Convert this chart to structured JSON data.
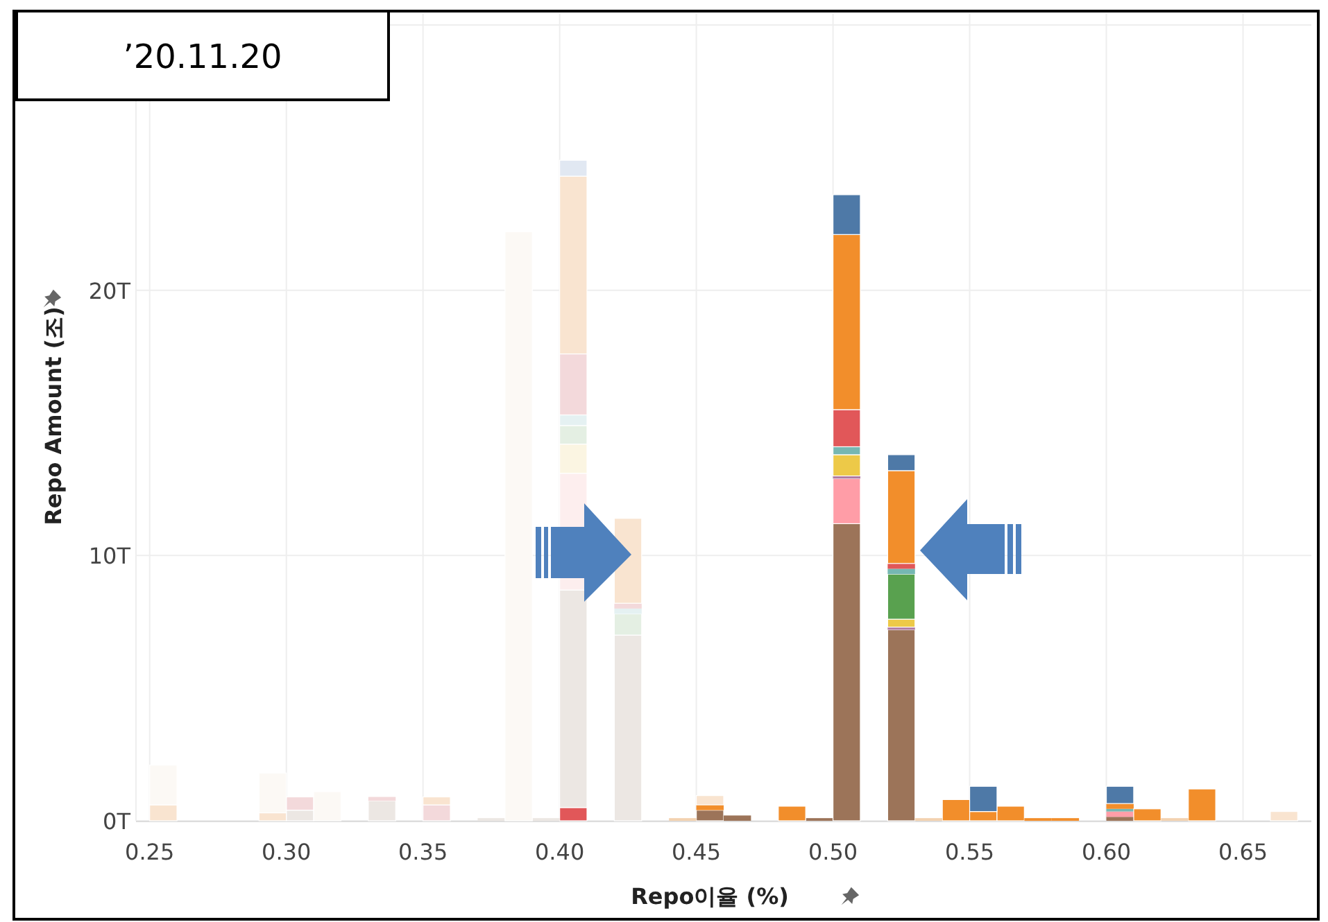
{
  "chart_data": {
    "type": "bar",
    "title": "’20.11.20",
    "xlabel": "Repo이율 (%)",
    "ylabel": "Repo Amount (조)",
    "x": [
      0.255,
      0.295,
      0.305,
      0.315,
      0.335,
      0.355,
      0.375,
      0.385,
      0.395,
      0.405,
      0.425,
      0.445,
      0.455,
      0.465,
      0.485,
      0.495,
      0.505,
      0.525,
      0.535,
      0.545,
      0.555,
      0.565,
      0.575,
      0.585,
      0.605,
      0.615,
      0.625,
      0.635,
      0.655,
      0.665
    ],
    "stacked": true,
    "series": [
      {
        "color": "#e15759",
        "values": [
          0,
          0,
          0,
          0,
          0,
          0,
          0,
          0,
          0,
          0.5,
          0,
          0,
          0,
          0,
          0,
          0,
          0,
          0,
          0,
          0,
          0,
          0,
          0,
          0,
          0,
          0,
          0,
          0,
          0,
          0
        ]
      },
      {
        "color": "#9c7459",
        "values": [
          0,
          0,
          0,
          0,
          0,
          0,
          0,
          0,
          0,
          0,
          0,
          0,
          0.4,
          0.2,
          0,
          0.1,
          11.2,
          7.2,
          0,
          0,
          0,
          0,
          0,
          0,
          0.15,
          0,
          0,
          0,
          0,
          0
        ]
      },
      {
        "color": "#ece7e3",
        "values": [
          0,
          0,
          0.4,
          0,
          0.75,
          0,
          0.1,
          0,
          0.1,
          8.2,
          7.0,
          0,
          0,
          0,
          0,
          0,
          0,
          0,
          0,
          0,
          0,
          0,
          0,
          0,
          0,
          0,
          0,
          0,
          null,
          0
        ]
      },
      {
        "color": "#ff9da7",
        "values": [
          0,
          0,
          0,
          0,
          0,
          0,
          0,
          0,
          0,
          0,
          0,
          0,
          0,
          0,
          0,
          0,
          1.7,
          0,
          0,
          0,
          0,
          0,
          0,
          0,
          0.2,
          0,
          0,
          0,
          0,
          0
        ]
      },
      {
        "color": "#fdeeee",
        "values": [
          0,
          0,
          0,
          0,
          0,
          0,
          0,
          0,
          0,
          4.4,
          0,
          0,
          0,
          0,
          0,
          0,
          0,
          0,
          0,
          0,
          0,
          0,
          0,
          0,
          0,
          0,
          0,
          0,
          0,
          0
        ]
      },
      {
        "color": "#b07aa1",
        "values": [
          0,
          0,
          0,
          0,
          0,
          0,
          0,
          0,
          0,
          0,
          0,
          0,
          0,
          0,
          0,
          0,
          0.1,
          0.1,
          0,
          0,
          0,
          0,
          0,
          0,
          0,
          0,
          0,
          0,
          0,
          0
        ]
      },
      {
        "color": "#edc948",
        "values": [
          0,
          0,
          0,
          0,
          0,
          0,
          0,
          0,
          0,
          0,
          0,
          0,
          0,
          0,
          0,
          0,
          0.8,
          0.3,
          0,
          0,
          0,
          0,
          0,
          0,
          0,
          0,
          0,
          0,
          0,
          0
        ]
      },
      {
        "color": "#fbf5e2",
        "values": [
          0,
          0,
          0,
          0,
          0,
          0,
          0,
          0,
          0,
          1.1,
          0,
          0,
          0,
          0,
          0,
          0,
          0,
          0,
          0,
          0,
          0,
          0,
          0,
          0,
          0,
          0,
          0,
          0,
          0,
          0
        ]
      },
      {
        "color": "#59a14f",
        "values": [
          0,
          0,
          0,
          0,
          0,
          0,
          0,
          0,
          0,
          0,
          0,
          0,
          0,
          0,
          0,
          0,
          0,
          1.7,
          0,
          0,
          0,
          0,
          0,
          0,
          0,
          0,
          0,
          0,
          0,
          0
        ]
      },
      {
        "color": "#e4efe3",
        "values": [
          0,
          0,
          0,
          0,
          0,
          0,
          0,
          0,
          0,
          0.7,
          0.8,
          0,
          0,
          0,
          0,
          0,
          0,
          0,
          0,
          0,
          0,
          0,
          0,
          0,
          0,
          0,
          0,
          0,
          0,
          0
        ]
      },
      {
        "color": "#76b7b2",
        "values": [
          0,
          0,
          0,
          0,
          0,
          0,
          0,
          0,
          0,
          0,
          0,
          0,
          0,
          0,
          0,
          0,
          0.3,
          0.2,
          0,
          0,
          0,
          0,
          0,
          0,
          0.1,
          0,
          0,
          0,
          0,
          0
        ]
      },
      {
        "color": "#e5f1f2",
        "values": [
          0,
          0,
          0,
          0,
          0,
          0,
          0,
          0,
          0,
          0.4,
          0.2,
          0,
          0,
          0,
          0,
          0,
          0,
          0,
          0,
          0,
          0,
          0,
          0,
          0,
          0,
          0,
          0,
          0,
          0,
          0
        ]
      },
      {
        "color": "#e15759",
        "values": [
          0,
          0,
          0,
          0,
          0,
          0,
          0,
          0,
          0,
          0,
          0,
          0,
          0,
          0,
          0,
          0,
          1.4,
          0.2,
          0,
          0,
          0,
          0,
          0,
          0,
          0,
          0,
          0,
          0,
          0,
          0
        ]
      },
      {
        "color": "#f3d9db",
        "values": [
          0,
          0,
          0.5,
          0,
          0.15,
          0.6,
          0,
          0,
          0,
          2.3,
          0.2,
          0,
          0,
          0,
          0,
          0,
          0,
          0,
          0,
          0,
          0,
          0,
          0,
          0,
          0,
          0,
          0,
          0,
          0,
          0
        ]
      },
      {
        "color": "#f28e2b",
        "values": [
          0,
          0,
          0,
          0,
          0,
          0,
          0,
          0,
          0,
          0,
          0,
          0,
          0.2,
          0,
          0.55,
          0,
          6.6,
          3.5,
          0,
          0.8,
          0.35,
          0.55,
          0.1,
          0.1,
          0.2,
          0.45,
          0,
          1.2,
          0,
          0
        ]
      },
      {
        "color": "#f9e4d0",
        "values": [
          0.6,
          0.3,
          0,
          0,
          0,
          0.3,
          0,
          0,
          0,
          6.7,
          3.2,
          0,
          0.35,
          0,
          0,
          0,
          0,
          0,
          0,
          0,
          0,
          0,
          0,
          0,
          0,
          0,
          0,
          0,
          0,
          0.35
        ]
      },
      {
        "color": "#f3d2b0",
        "values": [
          0,
          0,
          0,
          0,
          0,
          0,
          0,
          0,
          0,
          0,
          0,
          0.1,
          0,
          0,
          0,
          0,
          0,
          0,
          0.1,
          0,
          0,
          0,
          0,
          0,
          0,
          0,
          0.1,
          0,
          0,
          0
        ]
      },
      {
        "color": "#4e79a7",
        "values": [
          0,
          0,
          0,
          0,
          0,
          0,
          0,
          0,
          0,
          0,
          0,
          0,
          0,
          0,
          0,
          0,
          1.5,
          0.6,
          0,
          0,
          0.95,
          0,
          0,
          0,
          0.65,
          0,
          0,
          0,
          0,
          0
        ]
      },
      {
        "color": "#e1e8f2",
        "values": [
          0,
          0,
          0,
          0,
          0,
          0,
          0,
          0,
          0,
          0.6,
          0,
          0,
          0,
          0,
          0,
          0,
          0,
          0,
          0,
          0,
          0,
          0,
          0,
          0,
          0,
          0,
          0,
          0,
          0,
          0
        ]
      },
      {
        "color": "#fcf9f5",
        "values": [
          1.5,
          1.5,
          0,
          1.1,
          0,
          0,
          0,
          22.2,
          0,
          0,
          0,
          0,
          0,
          0,
          0,
          0,
          0,
          0,
          0,
          0,
          0,
          0,
          0,
          0,
          0,
          0,
          0,
          0,
          0,
          0
        ]
      }
    ],
    "xlim": [
      0.245,
      0.675
    ],
    "xticks": [
      {
        "value": 0.25,
        "label": "0.25"
      },
      {
        "value": 0.3,
        "label": "0.30"
      },
      {
        "value": 0.35,
        "label": "0.35"
      },
      {
        "value": 0.4,
        "label": "0.40"
      },
      {
        "value": 0.45,
        "label": "0.45"
      },
      {
        "value": 0.5,
        "label": "0.50"
      },
      {
        "value": 0.55,
        "label": "0.55"
      },
      {
        "value": 0.6,
        "label": "0.60"
      },
      {
        "value": 0.65,
        "label": "0.65"
      }
    ],
    "ylim": [
      0,
      30
    ],
    "yticks": [
      {
        "value": 0,
        "label": "0T"
      },
      {
        "value": 10,
        "label": "10T"
      },
      {
        "value": 20,
        "label": "20T"
      }
    ],
    "grid": true
  }
}
